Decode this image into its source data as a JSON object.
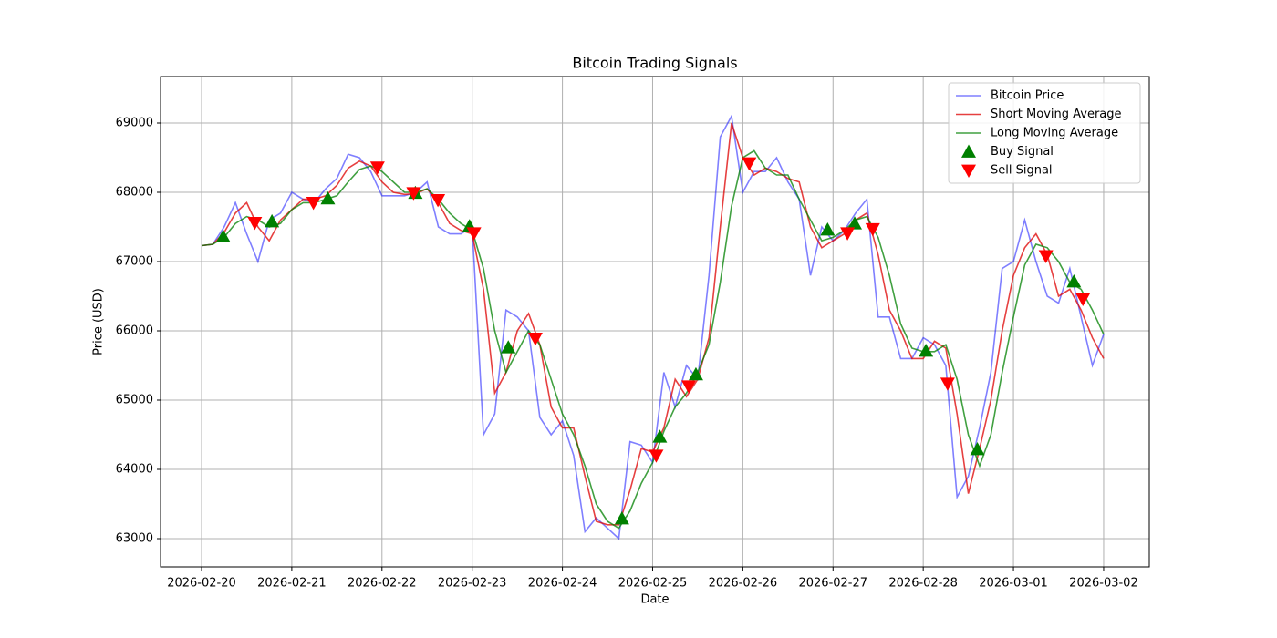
{
  "chart_data": {
    "type": "line",
    "title": "Bitcoin Trading Signals",
    "x_label": "Date",
    "y_label": "Price (USD)",
    "x": [
      0,
      0.125,
      0.25,
      0.375,
      0.5,
      0.625,
      0.75,
      0.875,
      1,
      1.125,
      1.25,
      1.375,
      1.5,
      1.625,
      1.75,
      1.875,
      2,
      2.125,
      2.25,
      2.375,
      2.5,
      2.625,
      2.75,
      2.875,
      3,
      3.125,
      3.25,
      3.375,
      3.5,
      3.625,
      3.75,
      3.875,
      4,
      4.125,
      4.25,
      4.375,
      4.5,
      4.625,
      4.75,
      4.875,
      5,
      5.125,
      5.25,
      5.375,
      5.5,
      5.625,
      5.75,
      5.875,
      6,
      6.125,
      6.25,
      6.375,
      6.5,
      6.625,
      6.75,
      6.875,
      7,
      7.125,
      7.25,
      7.375,
      7.5,
      7.625,
      7.75,
      7.875,
      8,
      8.125,
      8.25,
      8.375,
      8.5,
      8.625,
      8.75,
      8.875,
      9,
      9.125,
      9.25,
      9.375,
      9.5,
      9.625,
      9.75,
      9.875,
      10
    ],
    "series": [
      {
        "name": "Bitcoin Price",
        "type": "line",
        "color": "#0000ff",
        "alpha": 0.5,
        "values": [
          67230,
          67250,
          67500,
          67850,
          67400,
          67000,
          67600,
          67700,
          68000,
          67900,
          67850,
          68050,
          68200,
          68550,
          68500,
          68300,
          67950,
          67950,
          67950,
          68000,
          68150,
          67500,
          67400,
          67400,
          67500,
          64500,
          64800,
          66300,
          66200,
          66000,
          64750,
          64500,
          64700,
          64200,
          63100,
          63300,
          63150,
          63000,
          64400,
          64350,
          64100,
          65400,
          64900,
          65500,
          65300,
          66800,
          68800,
          69100,
          68000,
          68300,
          68300,
          68500,
          68150,
          67900,
          66800,
          67500,
          67300,
          67450,
          67700,
          67900,
          66200,
          66200,
          65600,
          65600,
          65900,
          65800,
          65500,
          63600,
          63900,
          64600,
          65400,
          66900,
          67000,
          67600,
          67000,
          66500,
          66400,
          66900,
          66200,
          65500,
          65950
        ]
      },
      {
        "name": "Short Moving Average",
        "type": "line",
        "color": "#dd0000",
        "alpha": 0.75,
        "values": [
          67230,
          67250,
          67420,
          67700,
          67850,
          67500,
          67300,
          67600,
          67750,
          67900,
          67900,
          67950,
          68100,
          68350,
          68450,
          68380,
          68150,
          68000,
          67970,
          67980,
          68050,
          67850,
          67550,
          67450,
          67400,
          66600,
          65100,
          65400,
          66000,
          66250,
          65800,
          64900,
          64600,
          64600,
          63900,
          63250,
          63200,
          63200,
          63700,
          64300,
          64250,
          64600,
          65300,
          65050,
          65300,
          65900,
          67500,
          69000,
          68500,
          68250,
          68350,
          68300,
          68200,
          68150,
          67500,
          67200,
          67300,
          67400,
          67600,
          67700,
          67100,
          66300,
          66000,
          65600,
          65600,
          65850,
          65750,
          64800,
          63650,
          64300,
          65000,
          66000,
          66800,
          67200,
          67400,
          67100,
          66500,
          66600,
          66300,
          65900,
          65600
        ]
      },
      {
        "name": "Long Moving Average",
        "type": "line",
        "color": "#008000",
        "alpha": 0.75,
        "values": [
          67230,
          67250,
          67350,
          67550,
          67650,
          67600,
          67500,
          67550,
          67750,
          67850,
          67850,
          67900,
          67950,
          68150,
          68330,
          68380,
          68300,
          68150,
          68000,
          68000,
          68050,
          67900,
          67700,
          67550,
          67450,
          66900,
          66000,
          65400,
          65700,
          66000,
          65800,
          65300,
          64800,
          64500,
          64050,
          63500,
          63250,
          63150,
          63400,
          63800,
          64100,
          64550,
          64900,
          65100,
          65400,
          65800,
          66700,
          67800,
          68500,
          68600,
          68350,
          68250,
          68250,
          67900,
          67600,
          67300,
          67350,
          67450,
          67600,
          67650,
          67350,
          66800,
          66100,
          65750,
          65700,
          65700,
          65800,
          65300,
          64500,
          64050,
          64500,
          65400,
          66200,
          66950,
          67250,
          67200,
          67000,
          66700,
          66600,
          66300,
          65950
        ]
      },
      {
        "name": "Buy Signal",
        "type": "scatter",
        "marker": "up",
        "color": "#008000",
        "x": [
          0.24,
          0.78,
          1.4,
          2.37,
          2.97,
          3.4,
          4.66,
          5.08,
          5.48,
          6.94,
          7.24,
          8.03,
          8.6,
          9.67
        ],
        "values": [
          67360,
          67580,
          67910,
          67990,
          67510,
          65760,
          63290,
          64470,
          65370,
          67460,
          67550,
          65710,
          64290,
          66710
        ]
      },
      {
        "name": "Sell Signal",
        "type": "scatter",
        "marker": "down",
        "color": "#ff0000",
        "x": [
          0.59,
          1.24,
          1.95,
          2.35,
          2.62,
          3.02,
          3.7,
          5.04,
          5.4,
          6.07,
          7.16,
          7.44,
          8.27,
          9.36,
          9.77
        ],
        "values": [
          67560,
          67850,
          68360,
          67990,
          67890,
          67410,
          65890,
          64200,
          65200,
          68420,
          67410,
          67470,
          65240,
          67080,
          66460
        ]
      }
    ],
    "xlim": [
      -0.455,
      10.506
    ],
    "ylim": [
      62592,
      69671
    ],
    "xticks": [
      {
        "value": 0,
        "label": "2026-02-20"
      },
      {
        "value": 1,
        "label": "2026-02-21"
      },
      {
        "value": 2,
        "label": "2026-02-22"
      },
      {
        "value": 3,
        "label": "2026-02-23"
      },
      {
        "value": 4,
        "label": "2026-02-24"
      },
      {
        "value": 5,
        "label": "2026-02-25"
      },
      {
        "value": 6,
        "label": "2026-02-26"
      },
      {
        "value": 7,
        "label": "2026-02-27"
      },
      {
        "value": 8,
        "label": "2026-02-28"
      },
      {
        "value": 9,
        "label": "2026-03-01"
      },
      {
        "value": 10,
        "label": "2026-03-02"
      }
    ],
    "yticks": [
      63000,
      64000,
      65000,
      66000,
      67000,
      68000,
      69000
    ],
    "grid": true,
    "legend": "upper-right"
  }
}
